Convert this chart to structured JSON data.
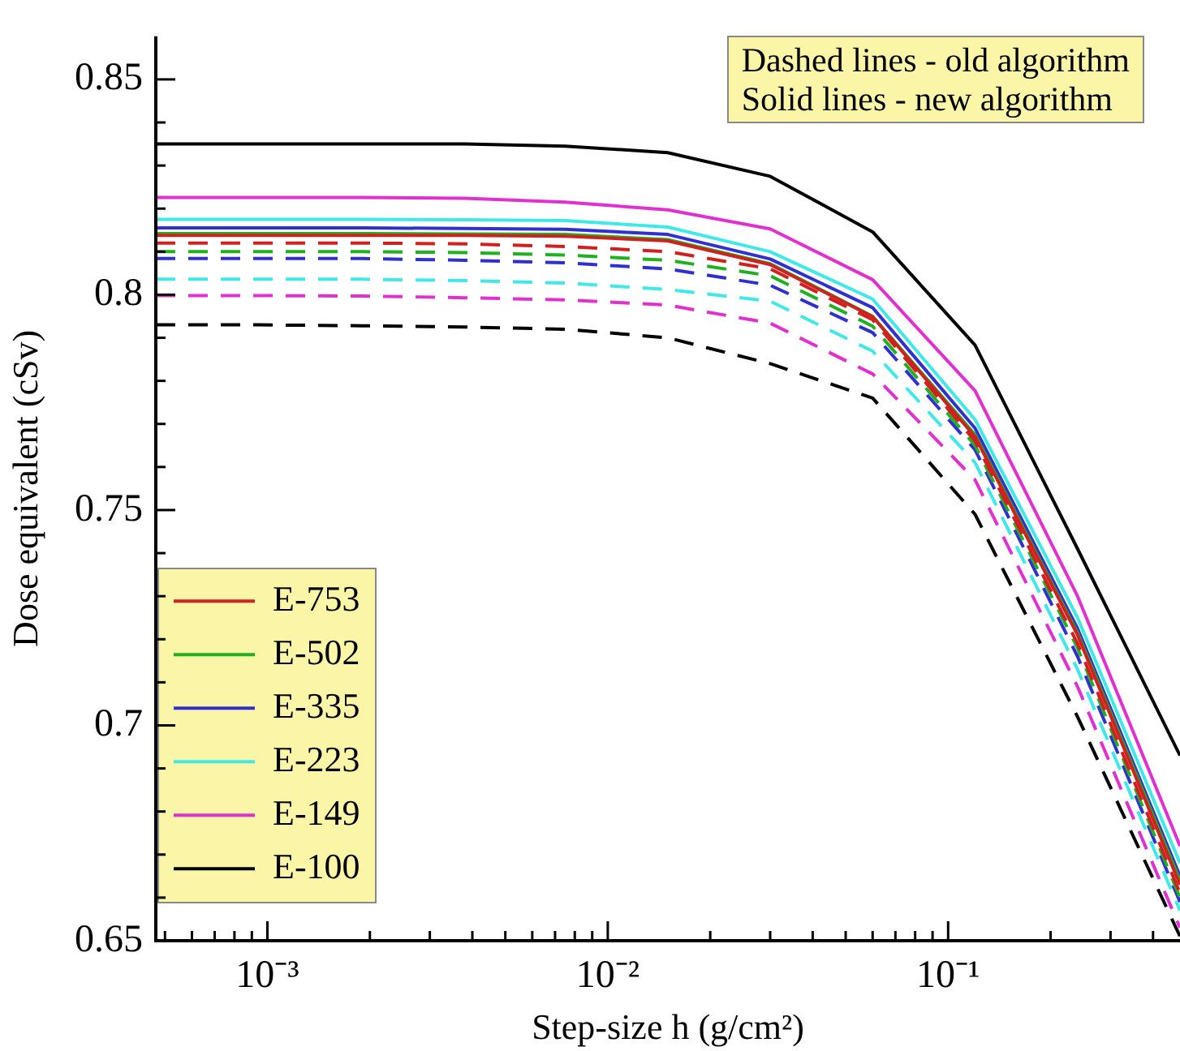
{
  "chart_data": {
    "type": "line",
    "xlabel": "Step-size h (g/cm²)",
    "ylabel": "Dose equivalent (cSv)",
    "annotations": [
      "Dashed lines - old algorithm",
      "Solid lines - new algorithm"
    ],
    "x": [
      0.00047,
      0.00094,
      0.0019,
      0.0038,
      0.0075,
      0.015,
      0.03,
      0.06,
      0.12,
      0.24,
      0.48
    ],
    "log": "x",
    "xlim": [
      0.00047,
      0.48
    ],
    "xticks": [
      {
        "value": 0.0005,
        "label": null
      },
      {
        "value": 0.0006,
        "label": null
      },
      {
        "value": 0.0007,
        "label": null
      },
      {
        "value": 0.0008,
        "label": null
      },
      {
        "value": 0.0009,
        "label": null
      },
      {
        "value": 0.001,
        "label": "10⁻³"
      },
      {
        "value": 0.002,
        "label": null
      },
      {
        "value": 0.003,
        "label": null
      },
      {
        "value": 0.004,
        "label": null
      },
      {
        "value": 0.005,
        "label": null
      },
      {
        "value": 0.006,
        "label": null
      },
      {
        "value": 0.007,
        "label": null
      },
      {
        "value": 0.008,
        "label": null
      },
      {
        "value": 0.009,
        "label": null
      },
      {
        "value": 0.01,
        "label": "10⁻²"
      },
      {
        "value": 0.02,
        "label": null
      },
      {
        "value": 0.03,
        "label": null
      },
      {
        "value": 0.04,
        "label": null
      },
      {
        "value": 0.05,
        "label": null
      },
      {
        "value": 0.06,
        "label": null
      },
      {
        "value": 0.07,
        "label": null
      },
      {
        "value": 0.08,
        "label": null
      },
      {
        "value": 0.09,
        "label": null
      },
      {
        "value": 0.1,
        "label": "10⁻¹"
      },
      {
        "value": 0.2,
        "label": null
      },
      {
        "value": 0.3,
        "label": null
      },
      {
        "value": 0.4,
        "label": null
      }
    ],
    "ylim": [
      0.65,
      0.86
    ],
    "yticks": [
      0.65,
      {
        "value": 0.66,
        "label": null
      },
      {
        "value": 0.67,
        "label": null
      },
      {
        "value": 0.68,
        "label": null
      },
      {
        "value": 0.69,
        "label": null
      },
      0.7,
      {
        "value": 0.71,
        "label": null
      },
      {
        "value": 0.72,
        "label": null
      },
      {
        "value": 0.73,
        "label": null
      },
      {
        "value": 0.74,
        "label": null
      },
      0.75,
      {
        "value": 0.76,
        "label": null
      },
      {
        "value": 0.77,
        "label": null
      },
      {
        "value": 0.78,
        "label": null
      },
      {
        "value": 0.79,
        "label": null
      },
      0.8,
      {
        "value": 0.81,
        "label": null
      },
      {
        "value": 0.82,
        "label": null
      },
      {
        "value": 0.83,
        "label": null
      },
      {
        "value": 0.84,
        "label": null
      },
      0.85
    ],
    "legend": "bottom left",
    "marker": "none",
    "series": [
      {
        "name": "E-753",
        "color": "#d02020",
        "line_style": "solid",
        "values": [
          0.8138,
          0.8138,
          0.8138,
          0.8138,
          0.8136,
          0.8125,
          0.807,
          0.7949,
          0.767,
          0.721,
          0.663
        ]
      },
      {
        "name": "E-502",
        "color": "#20b020",
        "line_style": "solid",
        "values": [
          0.8142,
          0.8142,
          0.8142,
          0.8141,
          0.814,
          0.8128,
          0.8072,
          0.795,
          0.7675,
          0.7215,
          0.664
        ]
      },
      {
        "name": "E-335",
        "color": "#3030d0",
        "line_style": "solid",
        "values": [
          0.8155,
          0.8155,
          0.8155,
          0.8154,
          0.8152,
          0.814,
          0.8083,
          0.797,
          0.769,
          0.7225,
          0.665
        ]
      },
      {
        "name": "E-223",
        "color": "#40e8e8",
        "line_style": "solid",
        "values": [
          0.8175,
          0.8175,
          0.8175,
          0.8174,
          0.8172,
          0.8157,
          0.81,
          0.799,
          0.771,
          0.725,
          0.668
        ]
      },
      {
        "name": "E-149",
        "color": "#e030d0",
        "line_style": "solid",
        "values": [
          0.8226,
          0.8226,
          0.8226,
          0.8224,
          0.8215,
          0.8197,
          0.8153,
          0.8035,
          0.7777,
          0.73,
          0.672
        ]
      },
      {
        "name": "E-100",
        "color": "#000000",
        "line_style": "solid",
        "values": [
          0.835,
          0.835,
          0.835,
          0.835,
          0.8345,
          0.833,
          0.8275,
          0.8146,
          0.7883,
          0.741,
          0.693
        ]
      },
      {
        "color": "#d02020",
        "line_style": "dashed",
        "values": [
          0.812,
          0.812,
          0.812,
          0.8118,
          0.8112,
          0.81,
          0.806,
          0.7942,
          0.766,
          0.719,
          0.661
        ]
      },
      {
        "color": "#20b020",
        "line_style": "dashed",
        "values": [
          0.81,
          0.81,
          0.81,
          0.8098,
          0.8092,
          0.808,
          0.8044,
          0.7927,
          0.765,
          0.718,
          0.66
        ]
      },
      {
        "color": "#3030d0",
        "line_style": "dashed",
        "values": [
          0.8084,
          0.8084,
          0.8084,
          0.808,
          0.8074,
          0.806,
          0.8022,
          0.7912,
          0.764,
          0.716,
          0.659
        ]
      },
      {
        "color": "#40e8e8",
        "line_style": "dashed",
        "values": [
          0.8036,
          0.8036,
          0.8036,
          0.8033,
          0.8027,
          0.8012,
          0.7985,
          0.7869,
          0.761,
          0.713,
          0.657
        ]
      },
      {
        "color": "#e030d0",
        "line_style": "dashed",
        "values": [
          0.7998,
          0.7998,
          0.7997,
          0.7993,
          0.7988,
          0.7976,
          0.7934,
          0.7816,
          0.757,
          0.709,
          0.653
        ]
      },
      {
        "color": "#000000",
        "line_style": "dashed",
        "values": [
          0.793,
          0.793,
          0.7928,
          0.7925,
          0.792,
          0.79,
          0.784,
          0.776,
          0.749,
          0.702,
          0.651
        ]
      }
    ]
  }
}
